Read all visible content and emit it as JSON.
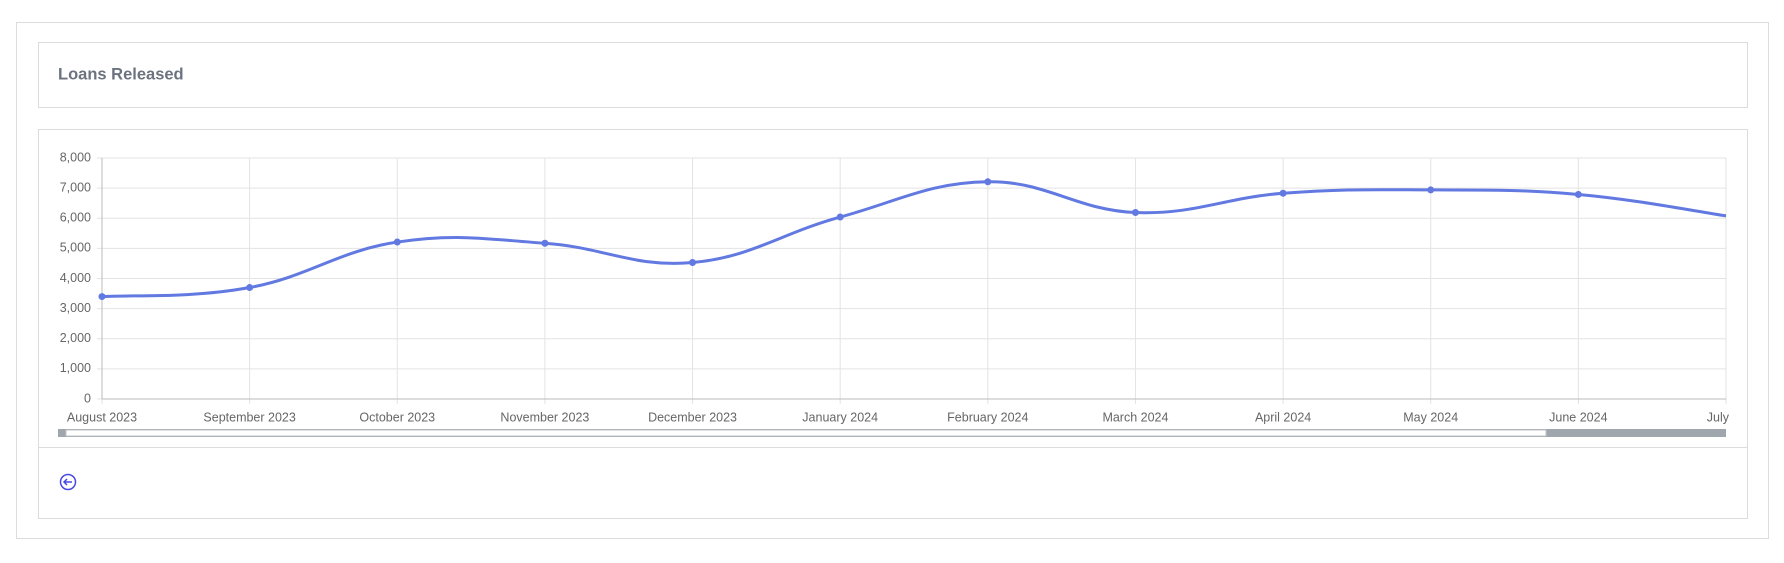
{
  "chart_data": {
    "type": "line",
    "title": "Loans Released",
    "categories": [
      "August 2023",
      "September 2023",
      "October 2023",
      "November 2023",
      "December 2023",
      "January 2024",
      "February 2024",
      "March 2024",
      "April 2024",
      "May 2024",
      "June 2024",
      "July"
    ],
    "values": [
      3400,
      3700,
      5210,
      5170,
      4530,
      6040,
      7210,
      6190,
      6830,
      6940,
      6790,
      6080
    ],
    "color": "#6179e0",
    "ylim": [
      0,
      8000
    ],
    "yticks": [
      0,
      {
        "value": 1000,
        "label": "1,000"
      },
      {
        "value": 2000,
        "label": "2,000"
      },
      {
        "value": 3000,
        "label": "3,000"
      },
      {
        "value": 4000,
        "label": "4,000"
      },
      {
        "value": 5000,
        "label": "5,000"
      },
      {
        "value": 6000,
        "label": "6,000"
      },
      {
        "value": 7000,
        "label": "7,000"
      },
      {
        "value": 8000,
        "label": "8,000"
      }
    ],
    "grid": true
  }
}
